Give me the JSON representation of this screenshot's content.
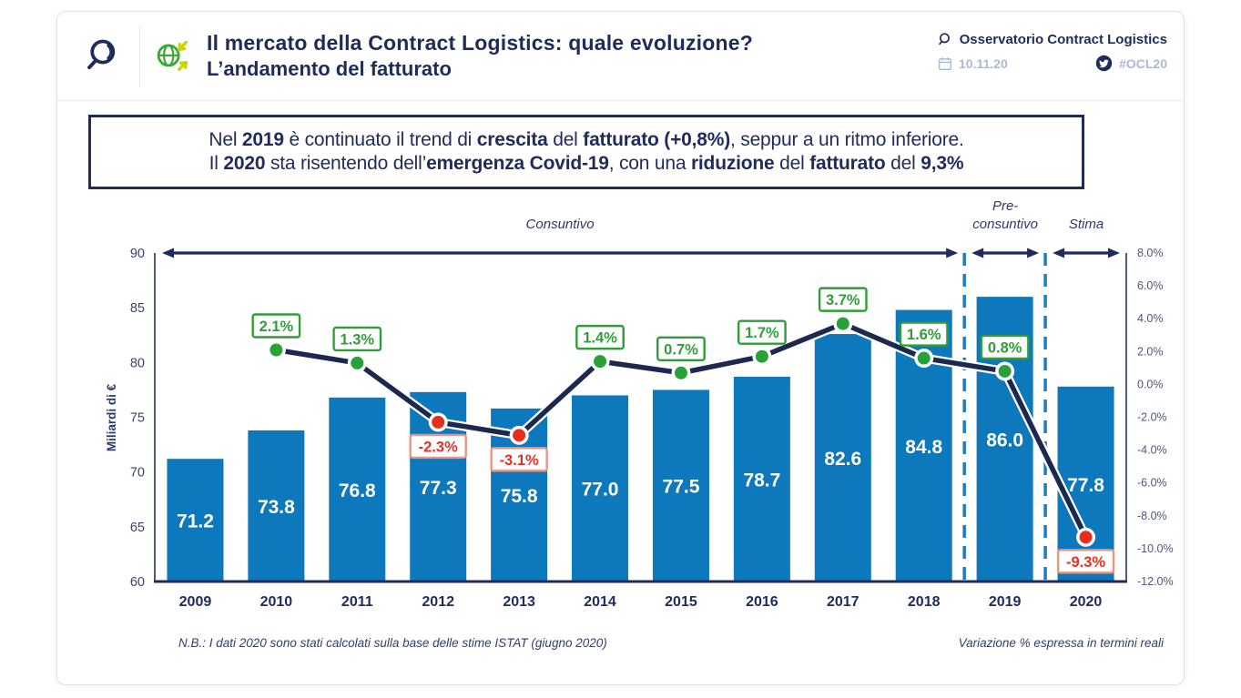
{
  "header": {
    "title_line1": "Il mercato della Contract Logistics: quale evoluzione?",
    "title_line2": "L’andamento del fatturato",
    "brand": "Osservatorio Contract Logistics",
    "date": "10.11.20",
    "hashtag": "#OCL20"
  },
  "callout": {
    "line1": [
      {
        "t": "Nel ",
        "b": false
      },
      {
        "t": "2019",
        "b": true
      },
      {
        "t": " è continuato il trend di ",
        "b": false
      },
      {
        "t": "crescita",
        "b": true
      },
      {
        "t": " del ",
        "b": false
      },
      {
        "t": "fatturato",
        "b": true
      },
      {
        "t": " ",
        "b": false
      },
      {
        "t": "(+0,8%)",
        "b": true
      },
      {
        "t": ", seppur a un ritmo inferiore.",
        "b": false
      }
    ],
    "line2": [
      {
        "t": "Il ",
        "b": false
      },
      {
        "t": "2020",
        "b": true
      },
      {
        "t": " sta risentendo dell’",
        "b": false
      },
      {
        "t": "emergenza Covid-19",
        "b": true
      },
      {
        "t": ", con una ",
        "b": false
      },
      {
        "t": "riduzione",
        "b": true
      },
      {
        "t": " del ",
        "b": false
      },
      {
        "t": "fatturato",
        "b": true
      },
      {
        "t": " del ",
        "b": false
      },
      {
        "t": "9,3%",
        "b": true
      }
    ]
  },
  "chart_data": {
    "type": "bar",
    "categories": [
      "2009",
      "2010",
      "2011",
      "2012",
      "2013",
      "2014",
      "2015",
      "2016",
      "2017",
      "2018",
      "2019",
      "2020"
    ],
    "series": [
      {
        "name": "Fatturato",
        "type": "bar",
        "values": [
          71.2,
          73.8,
          76.8,
          77.3,
          75.8,
          77.0,
          77.5,
          78.7,
          82.6,
          84.8,
          86.0,
          77.8
        ],
        "labels": [
          "71.2",
          "73.8",
          "76.8",
          "77.3",
          "75.8",
          "77.0",
          "77.5",
          "78.7",
          "82.6",
          "84.8",
          "86.0",
          "77.8"
        ]
      },
      {
        "name": "Variazione %",
        "type": "line",
        "values": [
          null,
          2.1,
          1.3,
          -2.3,
          -3.1,
          1.4,
          0.7,
          1.7,
          3.7,
          1.6,
          0.8,
          -9.3
        ],
        "labels": [
          null,
          "2.1%",
          "1.3%",
          "-2.3%",
          "-3.1%",
          "1.4%",
          "0.7%",
          "1.7%",
          "3.7%",
          "1.6%",
          "0.8%",
          "-9.3%"
        ]
      }
    ],
    "y_left": {
      "label": "Miliardi di €",
      "min": 60,
      "max": 90,
      "ticks": [
        "90",
        "85",
        "80",
        "75",
        "70",
        "65",
        "60"
      ]
    },
    "y_right": {
      "min": -12,
      "max": 8,
      "ticks": [
        "8.0%",
        "6.0%",
        "4.0%",
        "2.0%",
        "0.0%",
        "-2.0%",
        "-4.0%",
        "-6.0%",
        "-8.0%",
        "-10.0%",
        "-12.0%"
      ]
    },
    "sections": [
      {
        "label": "Consuntivo",
        "from": 0,
        "to": 9
      },
      {
        "label": "Pre-\nconsuntivo",
        "from": 10,
        "to": 10
      },
      {
        "label": "Stima",
        "from": 11,
        "to": 11
      }
    ],
    "dividers": [
      10,
      11
    ],
    "colors": {
      "bar": "#0e78bd",
      "bar_label": "#ffffff",
      "line": "#1d2850",
      "pos": "#2f9e38",
      "pos_dot": "#28a138",
      "neg": "#e8301f",
      "neg_dot": "#e62e1e",
      "neg_border": "#f0927e",
      "divider": "#1b7dc6",
      "axis": "#525c7c",
      "baseline": "#1f2b5b",
      "tick": "#39436a",
      "year": "#1f2b5b",
      "section": "#2e3a66"
    }
  },
  "footnotes": {
    "left": "N.B.: I dati 2020 sono stati calcolati sulla base delle stime ISTAT (giugno 2020)",
    "right": "Variazione % espressa in termini reali"
  }
}
